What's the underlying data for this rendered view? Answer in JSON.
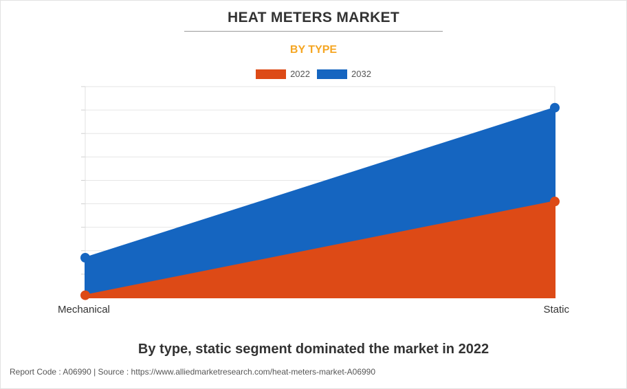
{
  "page": {
    "caption": "By type, static segment dominated the market in 2022",
    "footer": "Report Code : A06990  |  Source : https://www.alliedmarketresearch.com/heat-meters-market-A06990"
  },
  "chart_data": {
    "type": "area",
    "title": "HEAT METERS MARKET",
    "subtitle": "BY TYPE",
    "categories": [
      "Mechanical",
      "Static"
    ],
    "series": [
      {
        "name": "2022",
        "values": [
          0.1,
          4.1
        ],
        "color": "#dd4a16"
      },
      {
        "name": "2032",
        "values": [
          1.7,
          8.1
        ],
        "color": "#1565c0"
      }
    ],
    "stacked": false,
    "ylim": [
      0,
      9
    ],
    "legend_position": "top-center",
    "grid": true,
    "xlabel": "",
    "ylabel": ""
  }
}
